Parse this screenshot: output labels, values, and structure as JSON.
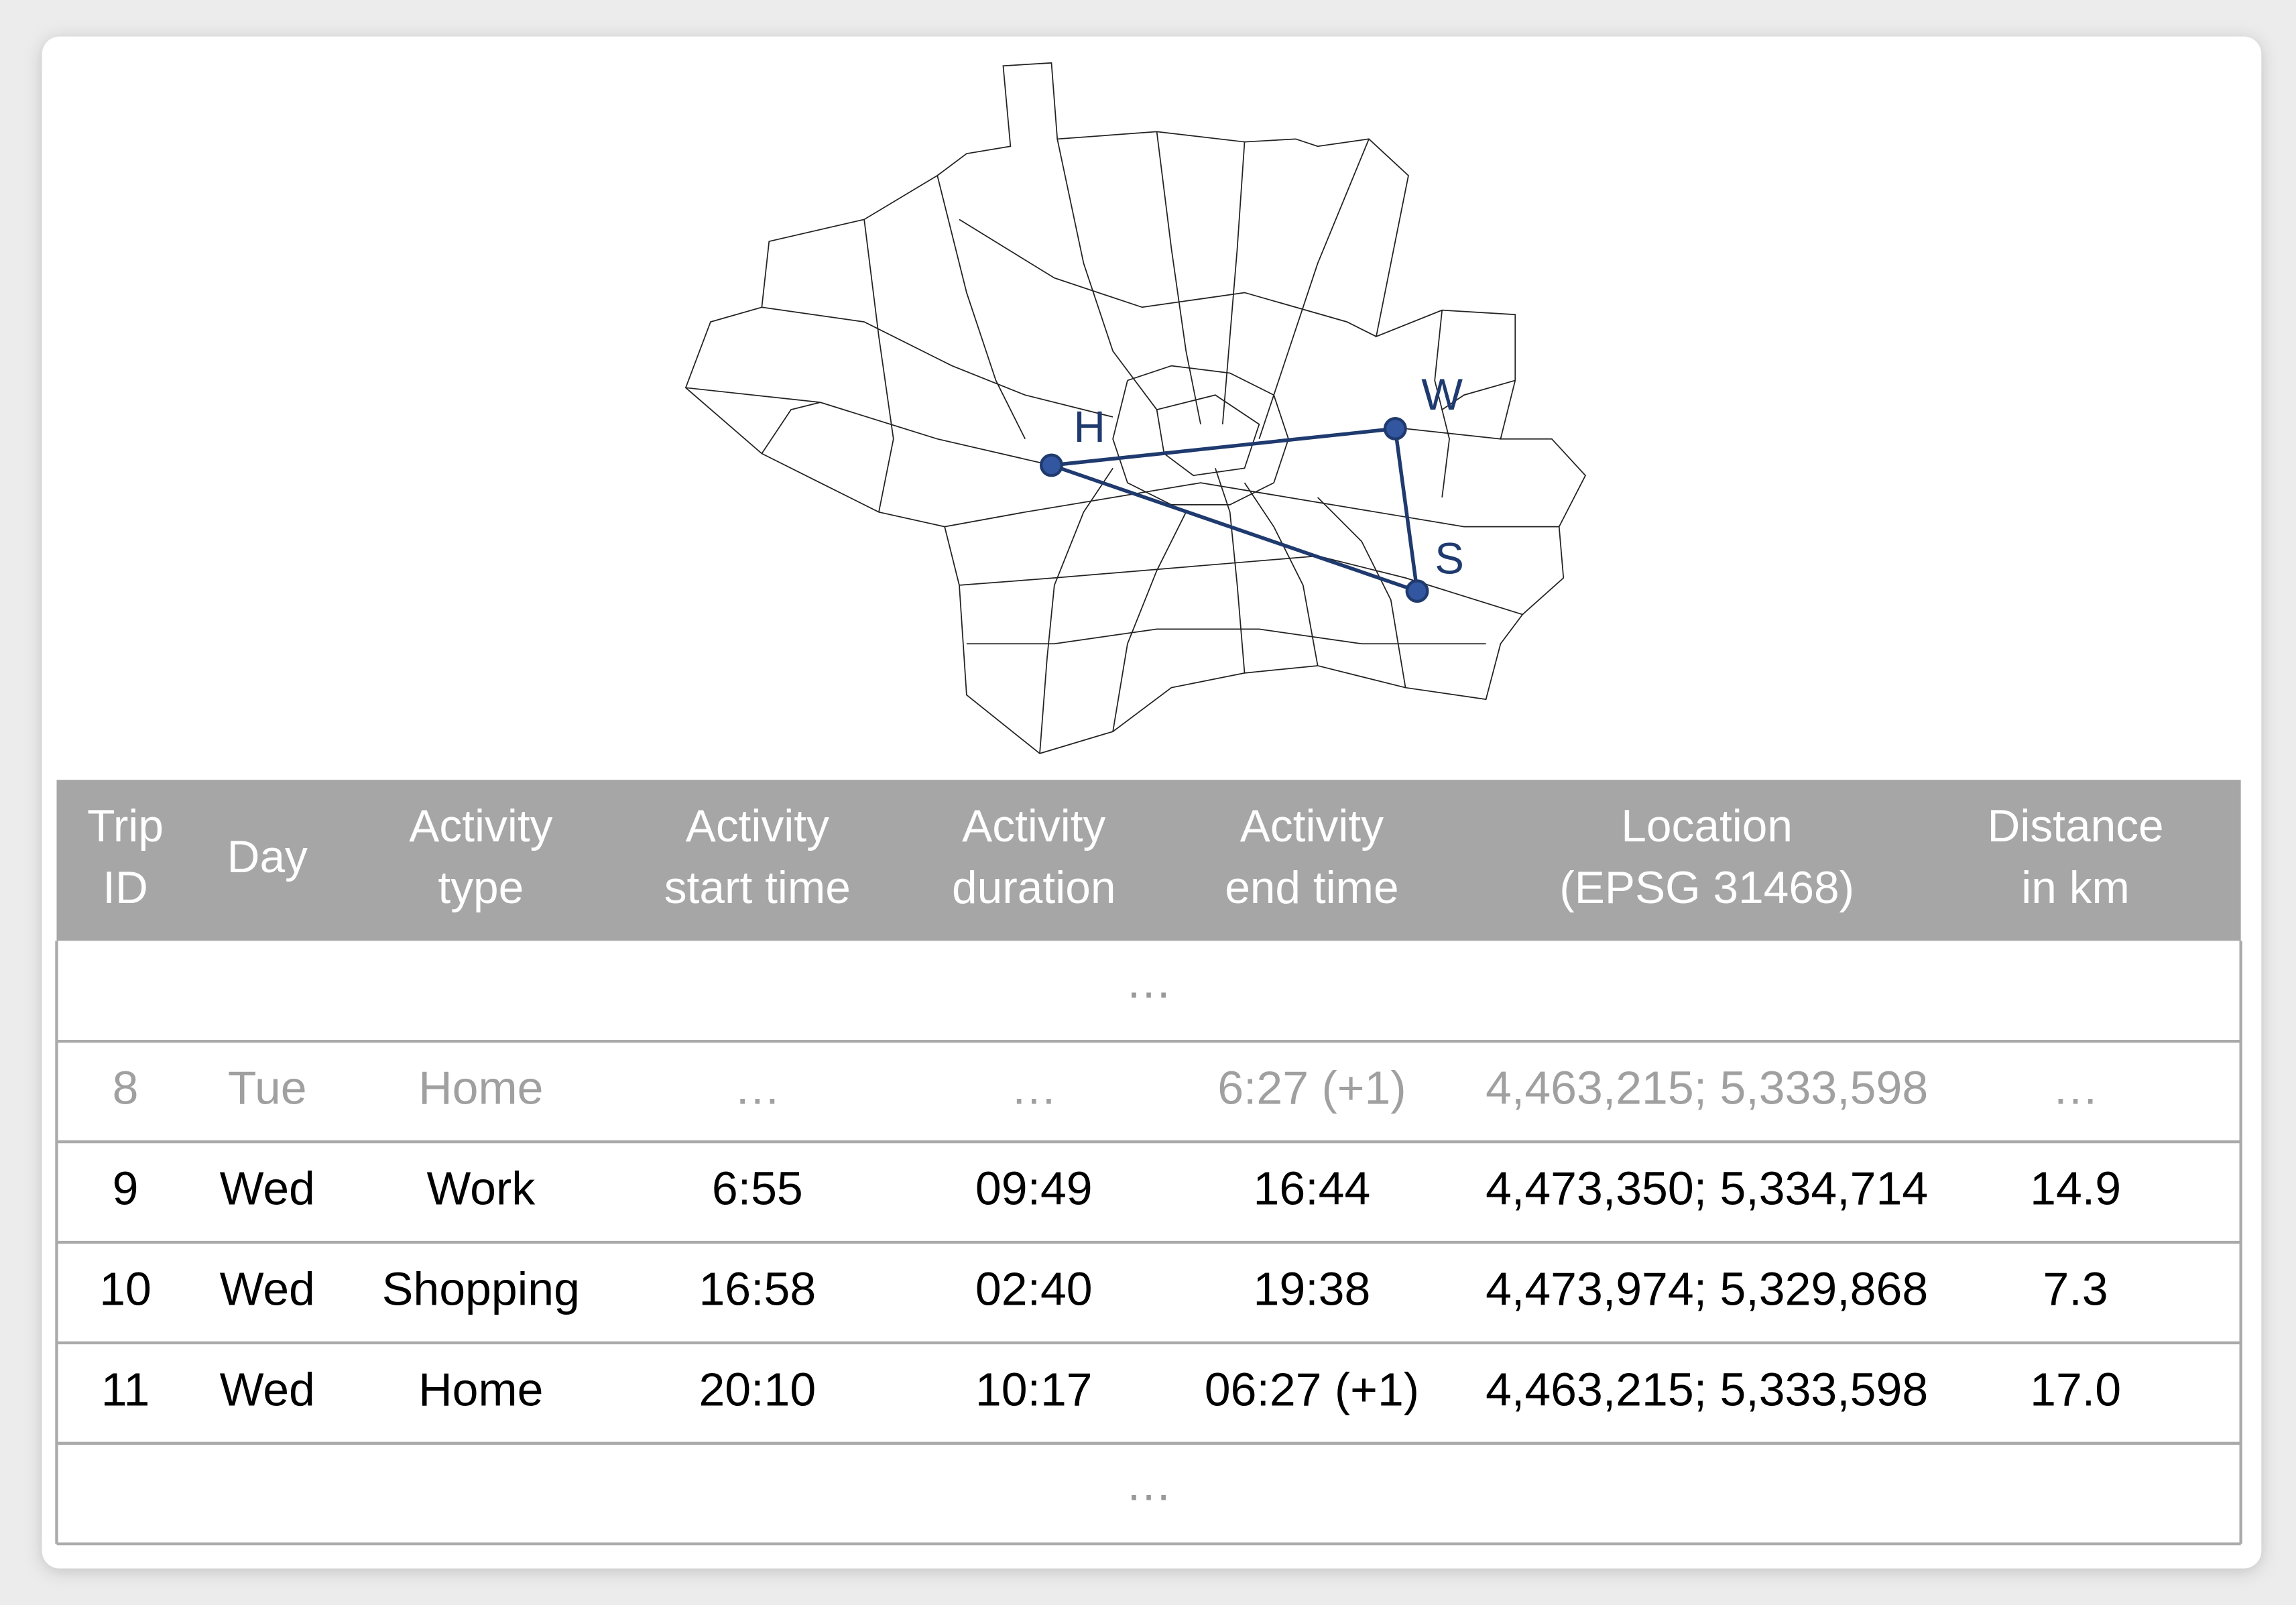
{
  "map": {
    "nodes": [
      {
        "label": "H"
      },
      {
        "label": "W"
      },
      {
        "label": "S"
      }
    ]
  },
  "table": {
    "header": [
      [
        "Trip",
        "ID"
      ],
      [
        "Day"
      ],
      [
        "Activity",
        "type"
      ],
      [
        "Activity",
        "start time"
      ],
      [
        "Activity",
        "duration"
      ],
      [
        "Activity",
        "end time"
      ],
      [
        "Location",
        "(EPSG 31468)"
      ],
      [
        "Distance",
        "in km"
      ]
    ],
    "rows": [
      [
        "…"
      ],
      [
        "8",
        "Tue",
        "Home",
        "…",
        "…",
        "6:27 (+1)",
        "4,463,215; 5,333,598",
        "…"
      ],
      [
        "9",
        "Wed",
        "Work",
        "6:55",
        "09:49",
        "16:44",
        "4,473,350; 5,334,714",
        "14.9"
      ],
      [
        "10",
        "Wed",
        "Shopping",
        "16:58",
        "02:40",
        "19:38",
        "4,473,974; 5,329,868",
        "7.3"
      ],
      [
        "11",
        "Wed",
        "Home",
        "20:10",
        "10:17",
        "06:27 (+1)",
        "4,463,215; 5,333,598",
        "17.0"
      ],
      [
        "…"
      ]
    ]
  }
}
